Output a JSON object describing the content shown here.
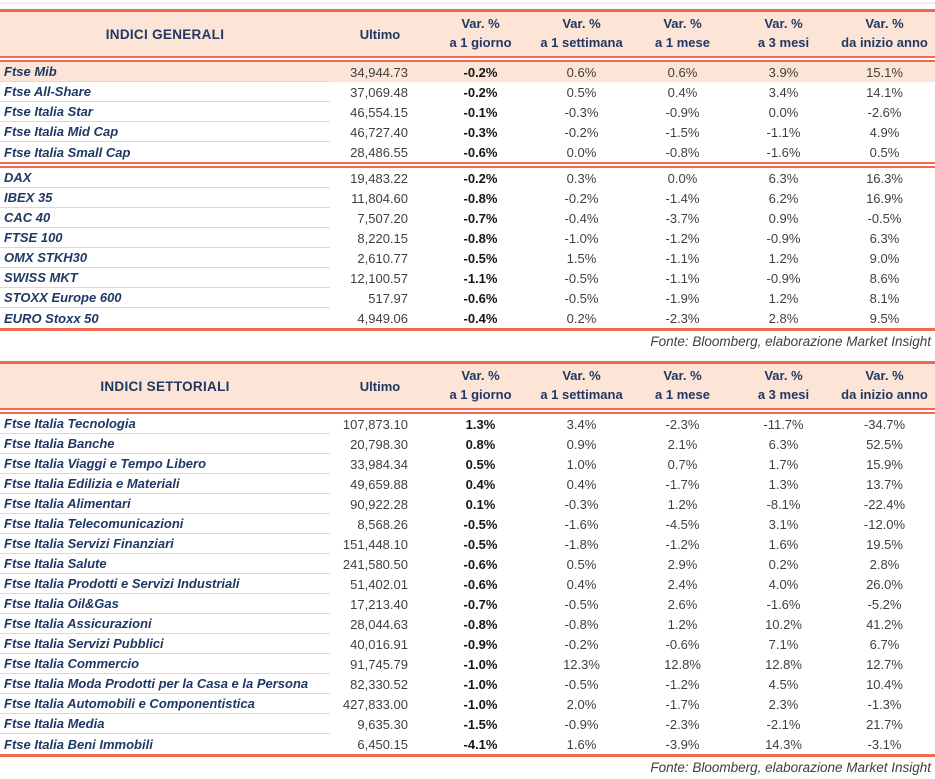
{
  "colors": {
    "line": "#ef6a4e",
    "header_bg": "#fce4d6",
    "highlight_bg": "#fce4d6",
    "heading_text": "#1f3864",
    "value_text": "#3f3f3f",
    "separator": "#d9d9d9"
  },
  "tables": [
    {
      "title": "INDICI GENERALI",
      "col_ultimo": "Ultimo",
      "var_cols": [
        {
          "line1": "Var. %",
          "line2": "a 1 giorno"
        },
        {
          "line1": "Var. %",
          "line2": "a 1 settimana"
        },
        {
          "line1": "Var. %",
          "line2": "a 1 mese"
        },
        {
          "line1": "Var. %",
          "line2": "a 3 mesi"
        },
        {
          "line1": "Var. %",
          "line2": "da inizio anno"
        }
      ],
      "groups": [
        {
          "rows": [
            {
              "name": "Ftse Mib",
              "ultimo": "34,944.73",
              "vars": [
                "-0.2%",
                "0.6%",
                "0.6%",
                "3.9%",
                "15.1%"
              ],
              "highlight": true
            },
            {
              "name": "Ftse All-Share",
              "ultimo": "37,069.48",
              "vars": [
                "-0.2%",
                "0.5%",
                "0.4%",
                "3.4%",
                "14.1%"
              ]
            },
            {
              "name": "Ftse Italia Star",
              "ultimo": "46,554.15",
              "vars": [
                "-0.1%",
                "-0.3%",
                "-0.9%",
                "0.0%",
                "-2.6%"
              ]
            },
            {
              "name": "Ftse Italia Mid Cap",
              "ultimo": "46,727.40",
              "vars": [
                "-0.3%",
                "-0.2%",
                "-1.5%",
                "-1.1%",
                "4.9%"
              ]
            },
            {
              "name": "Ftse Italia Small Cap",
              "ultimo": "28,486.55",
              "vars": [
                "-0.6%",
                "0.0%",
                "-0.8%",
                "-1.6%",
                "0.5%"
              ]
            }
          ]
        },
        {
          "rows": [
            {
              "name": "DAX",
              "ultimo": "19,483.22",
              "vars": [
                "-0.2%",
                "0.3%",
                "0.0%",
                "6.3%",
                "16.3%"
              ]
            },
            {
              "name": "IBEX 35",
              "ultimo": "11,804.60",
              "vars": [
                "-0.8%",
                "-0.2%",
                "-1.4%",
                "6.2%",
                "16.9%"
              ]
            },
            {
              "name": "CAC 40",
              "ultimo": "7,507.20",
              "vars": [
                "-0.7%",
                "-0.4%",
                "-3.7%",
                "0.9%",
                "-0.5%"
              ]
            },
            {
              "name": "FTSE 100",
              "ultimo": "8,220.15",
              "vars": [
                "-0.8%",
                "-1.0%",
                "-1.2%",
                "-0.9%",
                "6.3%"
              ]
            },
            {
              "name": "OMX STKH30",
              "ultimo": "2,610.77",
              "vars": [
                "-0.5%",
                "1.5%",
                "-1.1%",
                "1.2%",
                "9.0%"
              ]
            },
            {
              "name": "SWISS MKT",
              "ultimo": "12,100.57",
              "vars": [
                "-1.1%",
                "-0.5%",
                "-1.1%",
                "-0.9%",
                "8.6%"
              ]
            },
            {
              "name": "STOXX Europe 600",
              "ultimo": "517.97",
              "vars": [
                "-0.6%",
                "-0.5%",
                "-1.9%",
                "1.2%",
                "8.1%"
              ]
            },
            {
              "name": "EURO Stoxx 50",
              "ultimo": "4,949.06",
              "vars": [
                "-0.4%",
                "0.2%",
                "-2.3%",
                "2.8%",
                "9.5%"
              ]
            }
          ]
        }
      ],
      "source": "Fonte: Bloomberg, elaborazione Market Insight"
    },
    {
      "title": "INDICI SETTORIALI",
      "col_ultimo": "Ultimo",
      "var_cols": [
        {
          "line1": "Var. %",
          "line2": "a 1 giorno"
        },
        {
          "line1": "Var. %",
          "line2": "a 1 settimana"
        },
        {
          "line1": "Var. %",
          "line2": "a 1 mese"
        },
        {
          "line1": "Var. %",
          "line2": "a 3 mesi"
        },
        {
          "line1": "Var. %",
          "line2": "da inizio anno"
        }
      ],
      "groups": [
        {
          "rows": [
            {
              "name": "Ftse Italia Tecnologia",
              "ultimo": "107,873.10",
              "vars": [
                "1.3%",
                "3.4%",
                "-2.3%",
                "-11.7%",
                "-34.7%"
              ]
            },
            {
              "name": "Ftse Italia Banche",
              "ultimo": "20,798.30",
              "vars": [
                "0.8%",
                "0.9%",
                "2.1%",
                "6.3%",
                "52.5%"
              ]
            },
            {
              "name": "Ftse Italia Viaggi e Tempo Libero",
              "ultimo": "33,984.34",
              "vars": [
                "0.5%",
                "1.0%",
                "0.7%",
                "1.7%",
                "15.9%"
              ]
            },
            {
              "name": "Ftse Italia Edilizia e Materiali",
              "ultimo": "49,659.88",
              "vars": [
                "0.4%",
                "0.4%",
                "-1.7%",
                "1.3%",
                "13.7%"
              ]
            },
            {
              "name": "Ftse Italia Alimentari",
              "ultimo": "90,922.28",
              "vars": [
                "0.1%",
                "-0.3%",
                "1.2%",
                "-8.1%",
                "-22.4%"
              ]
            },
            {
              "name": "Ftse Italia Telecomunicazioni",
              "ultimo": "8,568.26",
              "vars": [
                "-0.5%",
                "-1.6%",
                "-4.5%",
                "3.1%",
                "-12.0%"
              ]
            },
            {
              "name": "Ftse Italia Servizi Finanziari",
              "ultimo": "151,448.10",
              "vars": [
                "-0.5%",
                "-1.8%",
                "-1.2%",
                "1.6%",
                "19.5%"
              ]
            },
            {
              "name": "Ftse Italia Salute",
              "ultimo": "241,580.50",
              "vars": [
                "-0.6%",
                "0.5%",
                "2.9%",
                "0.2%",
                "2.8%"
              ]
            },
            {
              "name": "Ftse Italia Prodotti e Servizi Industriali",
              "ultimo": "51,402.01",
              "vars": [
                "-0.6%",
                "0.4%",
                "2.4%",
                "4.0%",
                "26.0%"
              ]
            },
            {
              "name": "Ftse Italia Oil&Gas",
              "ultimo": "17,213.40",
              "vars": [
                "-0.7%",
                "-0.5%",
                "2.6%",
                "-1.6%",
                "-5.2%"
              ]
            },
            {
              "name": "Ftse Italia Assicurazioni",
              "ultimo": "28,044.63",
              "vars": [
                "-0.8%",
                "-0.8%",
                "1.2%",
                "10.2%",
                "41.2%"
              ]
            },
            {
              "name": "Ftse Italia Servizi Pubblici",
              "ultimo": "40,016.91",
              "vars": [
                "-0.9%",
                "-0.2%",
                "-0.6%",
                "7.1%",
                "6.7%"
              ]
            },
            {
              "name": "Ftse Italia Commercio",
              "ultimo": "91,745.79",
              "vars": [
                "-1.0%",
                "12.3%",
                "12.8%",
                "12.8%",
                "12.7%"
              ]
            },
            {
              "name": "Ftse Italia Moda Prodotti per la Casa e la Persona",
              "ultimo": "82,330.52",
              "vars": [
                "-1.0%",
                "-0.5%",
                "-1.2%",
                "4.5%",
                "10.4%"
              ]
            },
            {
              "name": "Ftse Italia Automobili e Componentistica",
              "ultimo": "427,833.00",
              "vars": [
                "-1.0%",
                "2.0%",
                "-1.7%",
                "2.3%",
                "-1.3%"
              ]
            },
            {
              "name": "Ftse Italia Media",
              "ultimo": "9,635.30",
              "vars": [
                "-1.5%",
                "-0.9%",
                "-2.3%",
                "-2.1%",
                "21.7%"
              ]
            },
            {
              "name": "Ftse Italia Beni Immobili",
              "ultimo": "6,450.15",
              "vars": [
                "-4.1%",
                "1.6%",
                "-3.9%",
                "14.3%",
                "-3.1%"
              ]
            }
          ]
        }
      ],
      "source": "Fonte: Bloomberg, elaborazione Market Insight"
    }
  ]
}
